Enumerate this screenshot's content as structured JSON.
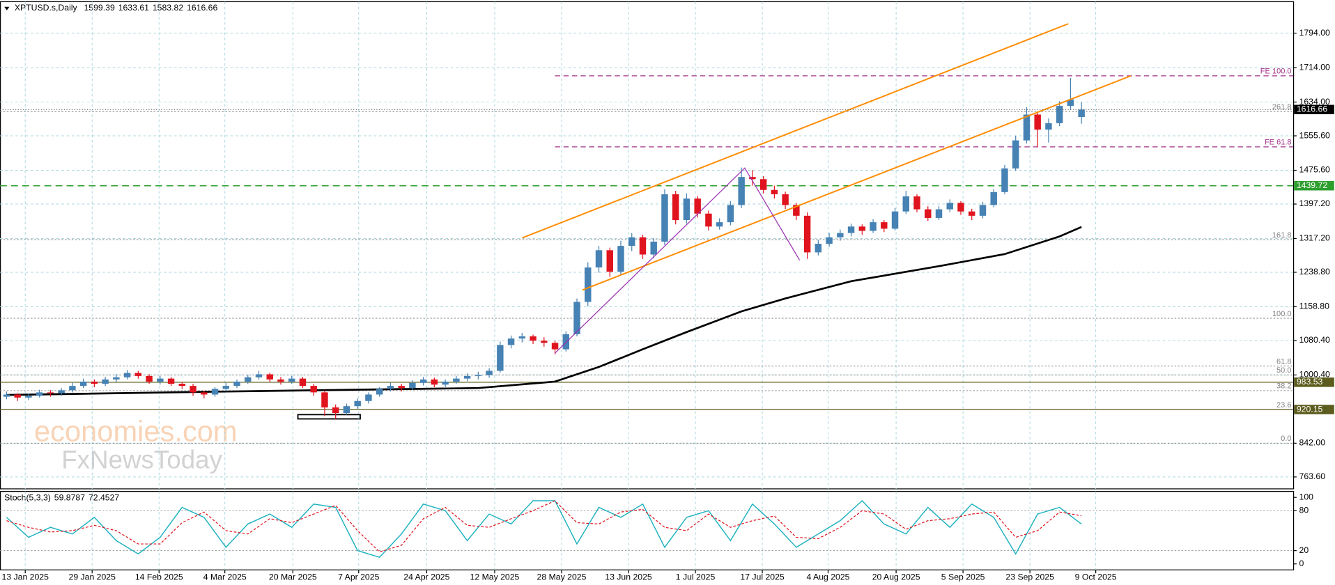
{
  "chart_data": {
    "type": "candlestick",
    "symbol": "XPTUSD.s,Daily",
    "bull_color": "#4682b4",
    "bear_color": "#e0141e",
    "grid": true,
    "grid_color": "#a9d6dc",
    "xlim": [
      -0.6,
      117.3
    ],
    "ylim": [
      736,
      1867
    ],
    "yticks": [
      {
        "value": 1794,
        "label": "1794.00"
      },
      {
        "value": 1714,
        "label": "1714.00"
      },
      {
        "value": 1634,
        "label": "1634.00"
      },
      {
        "value": 1555.6,
        "label": "1555.60"
      },
      {
        "value": 1475.6,
        "label": "1475.60"
      },
      {
        "value": 1397.2,
        "label": "1397.20"
      },
      {
        "value": 1317.2,
        "label": "1317.20"
      },
      {
        "value": 1238.8,
        "label": "1238.80"
      },
      {
        "value": 1158.8,
        "label": "1158.80"
      },
      {
        "value": 1080.4,
        "label": "1080.40"
      },
      {
        "value": 1000.4,
        "label": "1000.40"
      },
      {
        "value": 842,
        "label": "842.00"
      },
      {
        "value": 763.6,
        "label": "763.60"
      }
    ],
    "xticks": [
      {
        "value": 1.7,
        "label": "13 Jan 2025"
      },
      {
        "value": 7.8,
        "label": "29 Jan 2025"
      },
      {
        "value": 13.9,
        "label": "14 Feb 2025"
      },
      {
        "value": 19.9,
        "label": "4 Mar 2025"
      },
      {
        "value": 26.1,
        "label": "20 Mar 2025"
      },
      {
        "value": 32.1,
        "label": "7 Apr 2025"
      },
      {
        "value": 38.3,
        "label": "24 Apr 2025"
      },
      {
        "value": 44.5,
        "label": "12 May 2025"
      },
      {
        "value": 50.6,
        "label": "28 May 2025"
      },
      {
        "value": 56.7,
        "label": "13 Jun 2025"
      },
      {
        "value": 62.8,
        "label": "1 Jul 2025"
      },
      {
        "value": 68.9,
        "label": "17 Jul 2025"
      },
      {
        "value": 74.9,
        "label": "4 Aug 2025"
      },
      {
        "value": 81.1,
        "label": "20 Aug 2025"
      },
      {
        "value": 87.2,
        "label": "5 Sep 2025"
      },
      {
        "value": 93.3,
        "label": "23 Sep 2025"
      },
      {
        "value": 99.3,
        "label": "9 Oct 2025"
      }
    ],
    "candles": [
      [
        950,
        962,
        944,
        955
      ],
      [
        955,
        958,
        940,
        948
      ],
      [
        948,
        958,
        942,
        952
      ],
      [
        952,
        966,
        948,
        960
      ],
      [
        960,
        965,
        950,
        958
      ],
      [
        958,
        970,
        952,
        965
      ],
      [
        965,
        982,
        960,
        975
      ],
      [
        975,
        992,
        970,
        985
      ],
      [
        985,
        990,
        972,
        980
      ],
      [
        980,
        996,
        975,
        990
      ],
      [
        990,
        1002,
        984,
        995
      ],
      [
        995,
        1012,
        990,
        1005
      ],
      [
        1005,
        1010,
        992,
        998
      ],
      [
        998,
        1002,
        980,
        985
      ],
      [
        985,
        998,
        978,
        992
      ],
      [
        992,
        996,
        975,
        980
      ],
      [
        980,
        984,
        968,
        975
      ],
      [
        975,
        980,
        952,
        960
      ],
      [
        960,
        964,
        946,
        955
      ],
      [
        955,
        972,
        950,
        968
      ],
      [
        968,
        982,
        962,
        975
      ],
      [
        975,
        990,
        970,
        985
      ],
      [
        985,
        1000,
        980,
        995
      ],
      [
        995,
        1010,
        990,
        1002
      ],
      [
        1002,
        1006,
        984,
        990
      ],
      [
        990,
        996,
        978,
        985
      ],
      [
        985,
        998,
        980,
        992
      ],
      [
        992,
        996,
        970,
        975
      ],
      [
        975,
        980,
        952,
        960
      ],
      [
        960,
        964,
        905,
        925
      ],
      [
        925,
        932,
        898,
        912
      ],
      [
        912,
        934,
        908,
        928
      ],
      [
        928,
        946,
        922,
        940
      ],
      [
        940,
        960,
        934,
        955
      ],
      [
        955,
        972,
        950,
        968
      ],
      [
        968,
        982,
        962,
        975
      ],
      [
        975,
        980,
        962,
        970
      ],
      [
        970,
        988,
        965,
        982
      ],
      [
        982,
        996,
        976,
        990
      ],
      [
        990,
        994,
        972,
        978
      ],
      [
        978,
        990,
        972,
        985
      ],
      [
        985,
        998,
        980,
        992
      ],
      [
        992,
        1004,
        986,
        998
      ],
      [
        998,
        1008,
        990,
        1000
      ],
      [
        1000,
        1016,
        994,
        1010
      ],
      [
        1010,
        1078,
        1006,
        1070
      ],
      [
        1070,
        1092,
        1062,
        1085
      ],
      [
        1085,
        1098,
        1076,
        1090
      ],
      [
        1090,
        1094,
        1072,
        1080
      ],
      [
        1080,
        1088,
        1066,
        1075
      ],
      [
        1075,
        1080,
        1048,
        1060
      ],
      [
        1060,
        1102,
        1055,
        1095
      ],
      [
        1095,
        1178,
        1090,
        1170
      ],
      [
        1170,
        1262,
        1160,
        1250
      ],
      [
        1250,
        1300,
        1238,
        1290
      ],
      [
        1290,
        1296,
        1228,
        1240
      ],
      [
        1240,
        1312,
        1232,
        1300
      ],
      [
        1300,
        1330,
        1288,
        1320
      ],
      [
        1320,
        1326,
        1270,
        1280
      ],
      [
        1280,
        1318,
        1272,
        1310
      ],
      [
        1310,
        1432,
        1302,
        1420
      ],
      [
        1420,
        1428,
        1350,
        1360
      ],
      [
        1360,
        1422,
        1352,
        1410
      ],
      [
        1410,
        1416,
        1366,
        1375
      ],
      [
        1375,
        1382,
        1336,
        1345
      ],
      [
        1345,
        1364,
        1338,
        1355
      ],
      [
        1355,
        1404,
        1348,
        1395
      ],
      [
        1395,
        1482,
        1388,
        1460
      ],
      [
        1460,
        1476,
        1440,
        1455
      ],
      [
        1455,
        1462,
        1422,
        1430
      ],
      [
        1430,
        1440,
        1410,
        1420
      ],
      [
        1420,
        1426,
        1386,
        1395
      ],
      [
        1395,
        1400,
        1360,
        1370
      ],
      [
        1370,
        1378,
        1270,
        1285
      ],
      [
        1285,
        1314,
        1278,
        1305
      ],
      [
        1305,
        1330,
        1298,
        1320
      ],
      [
        1320,
        1338,
        1312,
        1330
      ],
      [
        1330,
        1352,
        1322,
        1345
      ],
      [
        1345,
        1350,
        1326,
        1335
      ],
      [
        1335,
        1362,
        1330,
        1355
      ],
      [
        1355,
        1360,
        1332,
        1340
      ],
      [
        1340,
        1388,
        1336,
        1380
      ],
      [
        1380,
        1428,
        1374,
        1415
      ],
      [
        1415,
        1420,
        1378,
        1385
      ],
      [
        1385,
        1392,
        1358,
        1365
      ],
      [
        1365,
        1392,
        1360,
        1385
      ],
      [
        1385,
        1408,
        1378,
        1400
      ],
      [
        1400,
        1404,
        1372,
        1380
      ],
      [
        1380,
        1386,
        1360,
        1370
      ],
      [
        1370,
        1402,
        1364,
        1395
      ],
      [
        1395,
        1432,
        1390,
        1425
      ],
      [
        1425,
        1488,
        1420,
        1480
      ],
      [
        1480,
        1556,
        1474,
        1545
      ],
      [
        1545,
        1622,
        1538,
        1605
      ],
      [
        1605,
        1612,
        1530,
        1570
      ],
      [
        1570,
        1596,
        1540,
        1585
      ],
      [
        1585,
        1636,
        1578,
        1625
      ],
      [
        1625,
        1690,
        1616,
        1640
      ],
      [
        1599.39,
        1633.61,
        1583.82,
        1616.66
      ]
    ],
    "ma": {
      "color": "#000000",
      "x": [
        0,
        20,
        43,
        50,
        54,
        58,
        62,
        67,
        71,
        77,
        85,
        91,
        96,
        98
      ],
      "values": [
        954,
        962,
        970,
        985,
        1019,
        1060,
        1100,
        1148,
        1178,
        1218,
        1253,
        1281,
        1322,
        1344
      ]
    },
    "trendlines": [
      {
        "color": "#ff8c00",
        "x": [
          47,
          96.8
        ],
        "values": [
          1318.5,
          1815.8
        ]
      },
      {
        "color": "#ff8c00",
        "x": [
          52.5,
          102.5
        ],
        "values": [
          1197.6,
          1694.9
        ]
      },
      {
        "color": "#9b30b0",
        "x": [
          50,
          67.3,
          72.3
        ],
        "values": [
          1051,
          1481,
          1267
        ]
      }
    ],
    "fib_levels": [
      {
        "value": 1612,
        "label": "261.8"
      },
      {
        "value": 1314.5,
        "label": "161.8"
      },
      {
        "value": 1132,
        "label": "100.0"
      },
      {
        "value": 1021,
        "label": "61.8"
      },
      {
        "value": 1000.5,
        "label": "50.0"
      },
      {
        "value": 964,
        "label": "38.2"
      },
      {
        "value": 920,
        "label": "23.6"
      },
      {
        "value": 842,
        "label": "0.0"
      }
    ],
    "fe_levels": [
      {
        "value": 1695,
        "label": "FE 100.0",
        "start": 50,
        "color": "#a0308a"
      },
      {
        "value": 1530,
        "label": "FE 61.8",
        "start": 50,
        "color": "#a0308a"
      }
    ],
    "hlines": [
      {
        "value": 1439.72,
        "color": "#2e9e2e",
        "dashed": true
      },
      {
        "value": 983.53,
        "color": "#5c5c1e",
        "dashed": false
      },
      {
        "value": 920.15,
        "color": "#5c5c1e",
        "dashed": false
      }
    ],
    "watermark": [
      "economies.com",
      "FxNewsToday"
    ],
    "stoch": {
      "name": "Stoch(5,3,3)",
      "ylim": [
        -9,
        109
      ],
      "yticks": [
        0,
        20,
        80,
        100
      ],
      "x": [
        0,
        2,
        4,
        6,
        8,
        10,
        12,
        14,
        16,
        18,
        20,
        22,
        24,
        26,
        28,
        30,
        32,
        34,
        36,
        38,
        40,
        42,
        44,
        46,
        48,
        50,
        52,
        54,
        56,
        58,
        60,
        62,
        64,
        66,
        68,
        70,
        72,
        74,
        76,
        78,
        80,
        82,
        84,
        86,
        88,
        90,
        92,
        94,
        96,
        98
      ],
      "series": [
        {
          "color": "#20b2c0",
          "values": [
            70,
            40,
            55,
            45,
            70,
            35,
            15,
            40,
            85,
            70,
            25,
            60,
            75,
            55,
            90,
            85,
            20,
            10,
            45,
            90,
            80,
            35,
            75,
            60,
            95,
            95,
            30,
            85,
            70,
            90,
            25,
            70,
            80,
            35,
            90,
            60,
            25,
            45,
            65,
            95,
            60,
            45,
            85,
            55,
            90,
            70,
            15,
            75,
            85,
            59.8787
          ]
        },
        {
          "color": "#e0141e",
          "values": [
            65,
            55,
            48,
            50,
            58,
            50,
            30,
            30,
            62,
            78,
            50,
            45,
            68,
            62,
            75,
            88,
            50,
            18,
            28,
            68,
            85,
            58,
            55,
            68,
            80,
            95,
            62,
            60,
            78,
            82,
            55,
            50,
            75,
            55,
            65,
            72,
            40,
            38,
            55,
            80,
            75,
            52,
            65,
            68,
            75,
            78,
            40,
            50,
            78,
            72.4527
          ]
        }
      ]
    }
  }
}
